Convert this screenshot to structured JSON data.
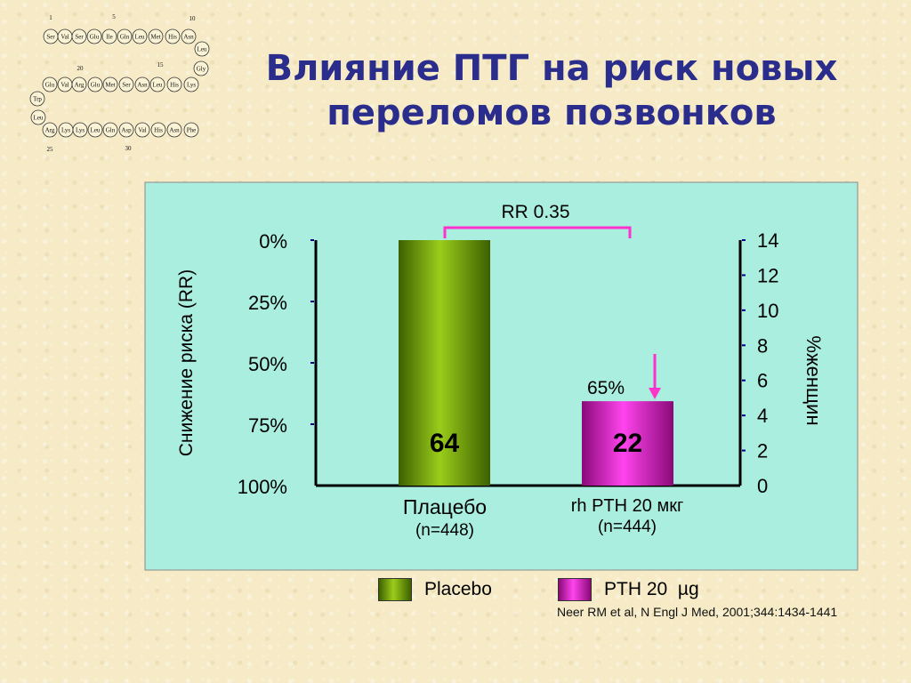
{
  "title": {
    "line1": "Влияние ПТГ на риск новых",
    "line2": "переломов позвонков"
  },
  "peptide": {
    "numbers": [
      "1",
      "5",
      "10",
      "15",
      "20",
      "25",
      "30"
    ],
    "row1": [
      "Ser",
      "Val",
      "Ser",
      "Glu",
      "Ile",
      "Gln",
      "Leu",
      "Met",
      "His",
      "Asn"
    ],
    "right_turn": [
      "Leu",
      "Gly"
    ],
    "row2": [
      "Glu",
      "Val",
      "Arg",
      "Glu",
      "Met",
      "Ser",
      "Asn",
      "Leu",
      "His",
      "Lys"
    ],
    "left_turn": [
      "Trp",
      "Leu"
    ],
    "row3": [
      "Arg",
      "Lys",
      "Lys",
      "Leu",
      "Gln",
      "Asp",
      "Val",
      "His",
      "Asn",
      "Phe"
    ]
  },
  "chart_data": {
    "type": "bar",
    "categories": [
      "Плацебо",
      "rh PTH 20 мкг"
    ],
    "category_notes": [
      "(n=448)",
      "(n=444)"
    ],
    "values": [
      64,
      22
    ],
    "value_labels": [
      "64",
      "22"
    ],
    "bar_colors": [
      "#6e9a06",
      "#b3139d"
    ],
    "left_axis": {
      "label": "Снижение риска (RR)",
      "tick_labels": [
        "0%",
        "25%",
        "50%",
        "75%",
        "100%"
      ]
    },
    "right_axis": {
      "label": "%женщин",
      "range": [
        0,
        14
      ],
      "ticks": [
        0,
        2,
        4,
        6,
        8,
        10,
        12,
        14
      ]
    },
    "y_max_value": 64,
    "bracket_label": "RR 0.35",
    "reduction_label": "65%",
    "accent_color": "#ff33cc",
    "background_color": "#aaeee0"
  },
  "legend": [
    {
      "label": "Placebo",
      "color": "#6e9a06"
    },
    {
      "label": "PTH 20  µg",
      "color": "#cc19b8"
    }
  ],
  "citation": "Neer RM et al, N Engl J Med, 2001;344:1434-1441"
}
